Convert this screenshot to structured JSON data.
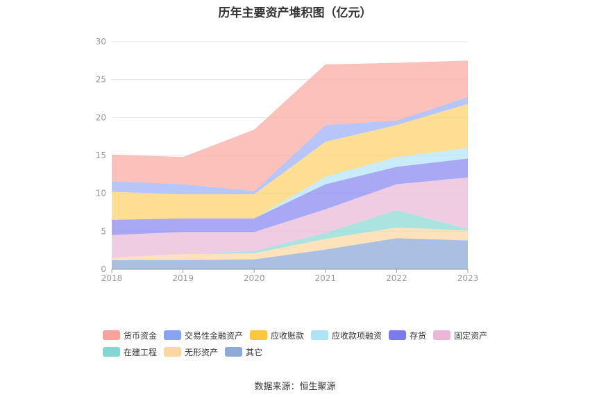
{
  "chart_data": {
    "type": "area",
    "stacked": true,
    "title": "历年主要资产堆积图（亿元）",
    "x": [
      "2018",
      "2019",
      "2020",
      "2021",
      "2022",
      "2023"
    ],
    "ylim": [
      0,
      30
    ],
    "yticks": [
      0,
      5,
      10,
      15,
      20,
      25,
      30
    ],
    "grid": true,
    "legend_position": "bottom",
    "series": [
      {
        "name": "其它",
        "color": "#8eaad8",
        "values": [
          1.2,
          1.2,
          1.3,
          2.6,
          4.1,
          3.8
        ]
      },
      {
        "name": "无形资产",
        "color": "#fcd8a4",
        "values": [
          0.3,
          0.8,
          0.8,
          1.4,
          1.4,
          1.3
        ]
      },
      {
        "name": "在建工程",
        "color": "#8fd9d6",
        "values": [
          0.0,
          0.0,
          0.3,
          0.8,
          2.3,
          0.2
        ]
      },
      {
        "name": "固定资产",
        "color": "#ebbbd9",
        "values": [
          3.0,
          2.9,
          2.5,
          3.1,
          3.4,
          6.8
        ]
      },
      {
        "name": "存货",
        "color": "#8b8bf2",
        "values": [
          2.0,
          1.8,
          1.8,
          3.3,
          2.3,
          2.5
        ]
      },
      {
        "name": "应收款项融资",
        "color": "#b6e6f7",
        "values": [
          0.0,
          0.0,
          0.0,
          1.0,
          1.3,
          1.4
        ]
      },
      {
        "name": "应收账款",
        "color": "#fcd36f",
        "values": [
          3.7,
          3.2,
          3.2,
          4.6,
          4.2,
          5.8
        ]
      },
      {
        "name": "交易性金融资产",
        "color": "#9fb2f5",
        "values": [
          1.4,
          1.3,
          0.4,
          2.2,
          0.6,
          0.9
        ]
      },
      {
        "name": "货币资金",
        "color": "#fbaca4",
        "values": [
          3.5,
          3.6,
          8.1,
          8.0,
          7.6,
          4.8
        ]
      }
    ],
    "legend_order": [
      "货币资金",
      "交易性金融资产",
      "应收账款",
      "应收款项融资",
      "存货",
      "固定资产",
      "在建工程",
      "无形资产",
      "其它"
    ],
    "legend_colors": {
      "货币资金": "#f7a29a",
      "交易性金融资产": "#8aa2f2",
      "应收账款": "#fcc63e",
      "应收款项融资": "#aee2f7",
      "存货": "#7b7bee",
      "固定资产": "#ebb6d8",
      "在建工程": "#84d6d3",
      "无形资产": "#fcd6a0",
      "其它": "#8eaad8"
    }
  },
  "source": "数据来源：恒生聚源"
}
